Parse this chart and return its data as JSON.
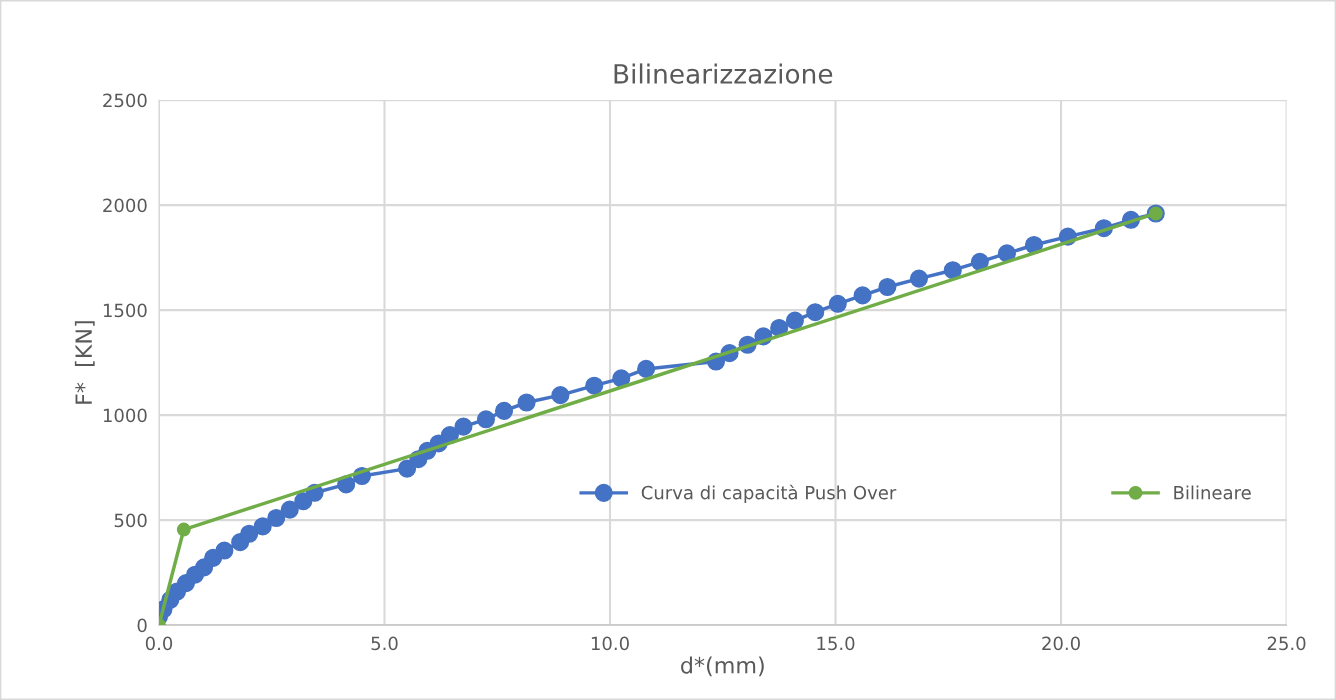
{
  "chart_data": {
    "type": "line",
    "title": "Bilinearizzazione",
    "xlabel": "d*(mm)",
    "ylabel": "F*  [KN]",
    "xlim": [
      0,
      25
    ],
    "xticks": [
      {
        "value": 0,
        "label": "0.0"
      },
      {
        "value": 5,
        "label": "5.0"
      },
      {
        "value": 10,
        "label": "10.0"
      },
      {
        "value": 15,
        "label": "15.0"
      },
      {
        "value": 20,
        "label": "20.0"
      },
      {
        "value": 25,
        "label": "25.0"
      }
    ],
    "ylim": [
      0,
      2500
    ],
    "yticks": [
      0,
      500,
      1000,
      1500,
      2000,
      2500
    ],
    "grid": true,
    "legend": "right",
    "marker": "circle",
    "line_style": "solid",
    "series": [
      {
        "name": "Curva di capacità Push Over",
        "color": "#4472c4",
        "x": [
          0.0,
          0.1,
          0.25,
          0.4,
          0.6,
          0.8,
          1.0,
          1.2,
          1.45,
          1.8,
          2.0,
          2.3,
          2.6,
          2.9,
          3.2,
          3.45,
          4.15,
          4.5,
          5.5,
          5.75,
          5.95,
          6.2,
          6.45,
          6.75,
          7.25,
          7.65,
          8.15,
          8.9,
          9.65,
          10.25,
          10.8,
          12.35,
          12.65,
          13.05,
          13.4,
          13.75,
          14.1,
          14.55,
          15.05,
          15.6,
          16.15,
          16.85,
          17.6,
          18.2,
          18.8,
          19.4,
          20.15,
          20.95,
          21.55,
          22.1
        ],
        "values": [
          40,
          75,
          120,
          160,
          200,
          240,
          275,
          320,
          355,
          395,
          435,
          470,
          510,
          550,
          590,
          630,
          670,
          710,
          745,
          790,
          830,
          865,
          905,
          945,
          980,
          1020,
          1060,
          1095,
          1140,
          1175,
          1220,
          1255,
          1295,
          1335,
          1375,
          1415,
          1450,
          1490,
          1530,
          1570,
          1610,
          1650,
          1690,
          1730,
          1770,
          1810,
          1850,
          1890,
          1930,
          1960
        ]
      },
      {
        "name": "Bilineare",
        "color": "#70ad47",
        "x": [
          0.0,
          0.55,
          22.1
        ],
        "values": [
          0,
          455,
          1960
        ]
      }
    ]
  }
}
